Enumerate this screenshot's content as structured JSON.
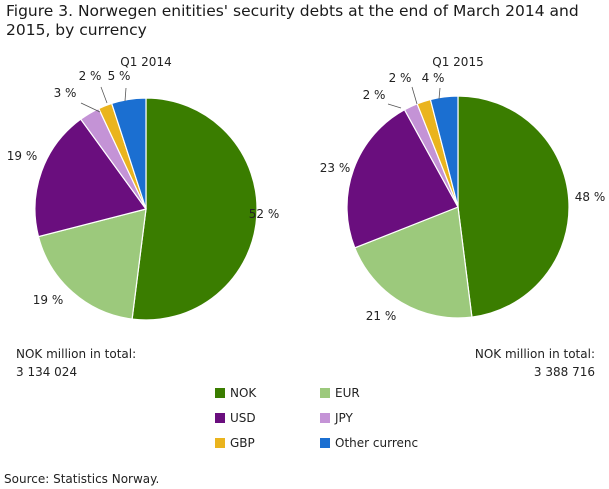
{
  "title": "Figure 3. Norwegen enitities' security debts at the end of March 2014 and 2015, by currency",
  "source": "Source: Statistics Norway.",
  "legend": [
    {
      "label": "NOK",
      "color": "#3a7d00"
    },
    {
      "label": "EUR",
      "color": "#9cc97c"
    },
    {
      "label": "USD",
      "color": "#6a0e7e"
    },
    {
      "label": "JPY",
      "color": "#c493d6"
    },
    {
      "label": "GBP",
      "color": "#eab41e"
    },
    {
      "label": "Other currenc",
      "color": "#1b6fd1"
    }
  ],
  "totals": [
    {
      "label": "NOK million  in total:",
      "value": "3 134 024"
    },
    {
      "label": "NOK million  in total:",
      "value": "3 388 716"
    }
  ],
  "chart_data": [
    {
      "type": "pie",
      "title": "Q1 2014",
      "labels": [
        "NOK",
        "EUR",
        "USD",
        "JPY",
        "GBP",
        "Other currenc"
      ],
      "values": [
        52,
        19,
        19,
        3,
        2,
        5
      ],
      "value_labels": [
        "52 %",
        "19 %",
        "19 %",
        "3 %",
        "2 %",
        "5 %"
      ]
    },
    {
      "type": "pie",
      "title": "Q1 2015",
      "labels": [
        "NOK",
        "EUR",
        "USD",
        "JPY",
        "GBP",
        "Other currenc"
      ],
      "values": [
        48,
        21,
        23,
        2,
        2,
        4
      ],
      "value_labels": [
        "48 %",
        "21 %",
        "23 %",
        "2 %",
        "2 %",
        "4 %"
      ]
    }
  ]
}
